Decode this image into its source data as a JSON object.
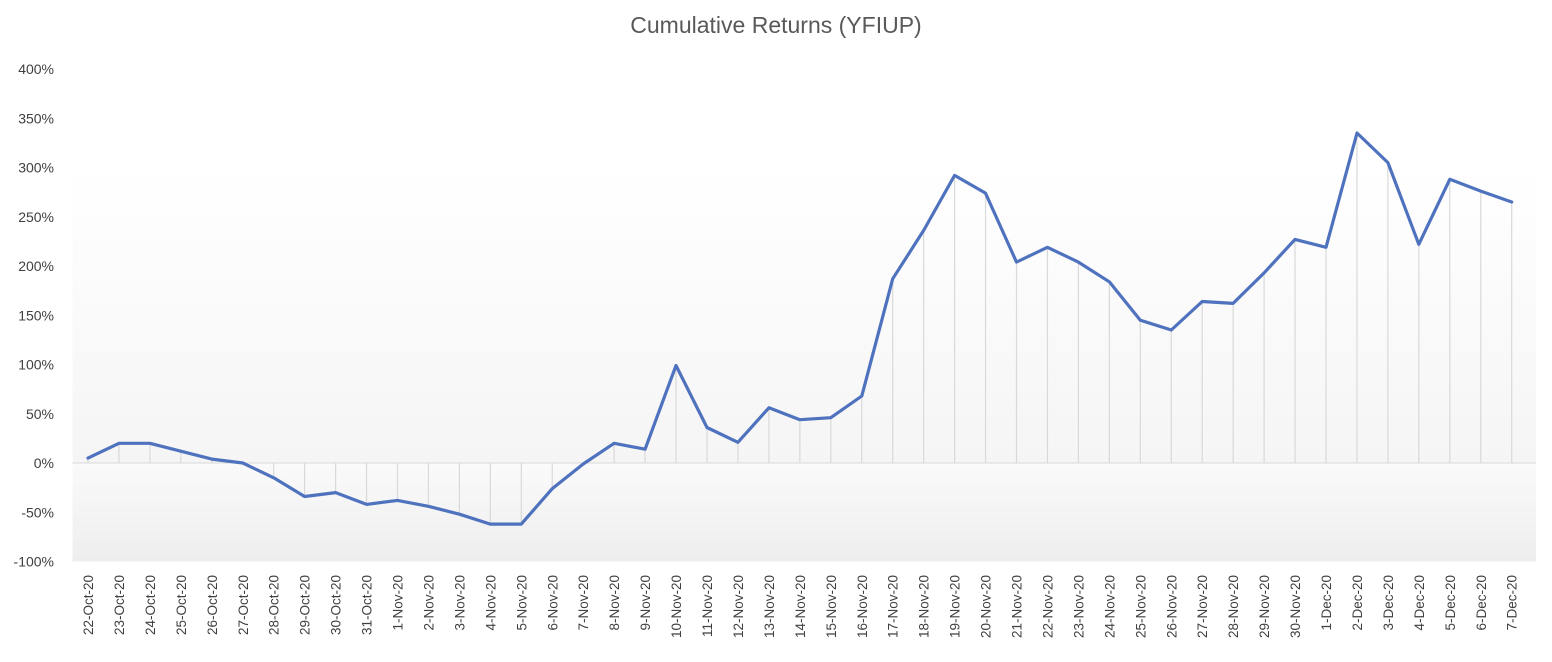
{
  "chart_data": {
    "type": "area",
    "title": "Cumulative Returns (YFIUP)",
    "xlabel": "",
    "ylabel": "",
    "ylim": [
      -100,
      400
    ],
    "yticks": [
      -100,
      -50,
      0,
      50,
      100,
      150,
      200,
      250,
      300,
      350,
      400
    ],
    "y_tick_labels": [
      "-100%",
      "-50%",
      "0%",
      "50%",
      "100%",
      "150%",
      "200%",
      "250%",
      "300%",
      "350%",
      "400%"
    ],
    "grid": false,
    "legend": "none",
    "categories": [
      "22-Oct-20",
      "23-Oct-20",
      "24-Oct-20",
      "25-Oct-20",
      "26-Oct-20",
      "27-Oct-20",
      "28-Oct-20",
      "29-Oct-20",
      "30-Oct-20",
      "31-Oct-20",
      "1-Nov-20",
      "2-Nov-20",
      "3-Nov-20",
      "4-Nov-20",
      "5-Nov-20",
      "6-Nov-20",
      "7-Nov-20",
      "8-Nov-20",
      "9-Nov-20",
      "10-Nov-20",
      "11-Nov-20",
      "12-Nov-20",
      "13-Nov-20",
      "14-Nov-20",
      "15-Nov-20",
      "16-Nov-20",
      "17-Nov-20",
      "18-Nov-20",
      "19-Nov-20",
      "20-Nov-20",
      "21-Nov-20",
      "22-Nov-20",
      "23-Nov-20",
      "24-Nov-20",
      "25-Nov-20",
      "26-Nov-20",
      "27-Nov-20",
      "28-Nov-20",
      "29-Nov-20",
      "30-Nov-20",
      "1-Dec-20",
      "2-Dec-20",
      "3-Dec-20",
      "4-Dec-20",
      "5-Dec-20",
      "6-Dec-20",
      "7-Dec-20"
    ],
    "series": [
      {
        "values": [
          5,
          20,
          20,
          12,
          4,
          0,
          -15,
          -34,
          -30,
          -42,
          -38,
          -44,
          -52,
          -62,
          -62,
          -26,
          -1,
          20,
          14,
          99,
          36,
          21,
          56,
          44,
          46,
          68,
          187,
          236,
          292,
          274,
          204,
          219,
          204,
          184,
          145,
          135,
          164,
          162,
          193,
          227,
          219,
          335,
          305,
          222,
          288,
          276,
          265
        ],
        "color": "#4f72be"
      }
    ],
    "colors": {
      "line": "#4f72be",
      "droplines": "#d9d9d9",
      "axis": "#d9d9d9",
      "text": "#404040",
      "title": "#595959"
    }
  }
}
